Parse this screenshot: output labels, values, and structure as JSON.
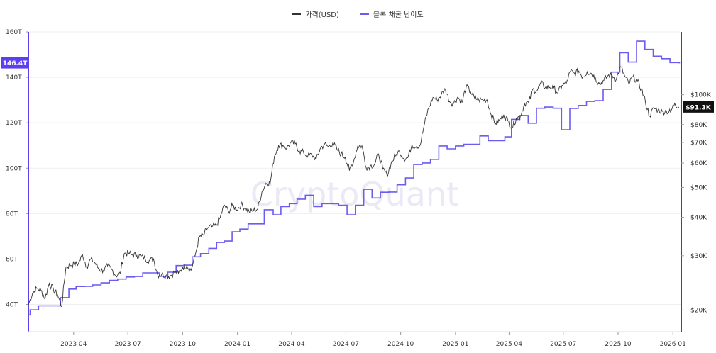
{
  "chart_data": {
    "type": "line",
    "watermark": "CryptoQuant",
    "colors": {
      "price": "#333333",
      "difficulty": "#6b5cf0",
      "difficulty_badge": "#5b3ff0",
      "price_badge": "#111111",
      "grid": "#efefef"
    },
    "legend": {
      "placement": "top-center",
      "price_label": "가격(USD)",
      "difficulty_label": "블록 채굴 난이도"
    },
    "x_axis": {
      "range": [
        "2023-01-15",
        "2026-01-15"
      ],
      "ticks": [
        {
          "date": "2023-04-01",
          "label": "2023 04"
        },
        {
          "date": "2023-07-01",
          "label": "2023 07"
        },
        {
          "date": "2023-10-01",
          "label": "2023 10"
        },
        {
          "date": "2024-01-01",
          "label": "2024 01"
        },
        {
          "date": "2024-04-01",
          "label": "2024 04"
        },
        {
          "date": "2024-07-01",
          "label": "2024 07"
        },
        {
          "date": "2024-10-01",
          "label": "2024 10"
        },
        {
          "date": "2025-01-01",
          "label": "2025 01"
        },
        {
          "date": "2025-04-01",
          "label": "2025 04"
        },
        {
          "date": "2025-07-01",
          "label": "2025 07"
        },
        {
          "date": "2025-10-01",
          "label": "2025 10"
        },
        {
          "date": "2026-01-01",
          "label": "2026 01"
        }
      ]
    },
    "left_axis": {
      "unit": "T",
      "range": [
        28,
        160
      ],
      "ticks": [
        {
          "value": 40,
          "label": "40T"
        },
        {
          "value": 60,
          "label": "60T"
        },
        {
          "value": 80,
          "label": "80T"
        },
        {
          "value": 100,
          "label": "100T"
        },
        {
          "value": 120,
          "label": "120T"
        },
        {
          "value": 140,
          "label": "140T"
        },
        {
          "value": 160,
          "label": "160T"
        }
      ],
      "current_badge": {
        "value": 146.4,
        "label": "146.4T"
      }
    },
    "right_axis": {
      "scale": "log",
      "range": [
        17000,
        160000
      ],
      "ticks": [
        {
          "value": 20000,
          "label": "$20K"
        },
        {
          "value": 30000,
          "label": "$30K"
        },
        {
          "value": 40000,
          "label": "$40K"
        },
        {
          "value": 50000,
          "label": "$50K"
        },
        {
          "value": 60000,
          "label": "$60K"
        },
        {
          "value": 70000,
          "label": "$70K"
        },
        {
          "value": 80000,
          "label": "$80K"
        },
        {
          "value": 100000,
          "label": "$100K"
        }
      ],
      "current_badge": {
        "value": 91300,
        "label": "$91.3K"
      }
    },
    "grid": true,
    "series": [
      {
        "name": "가격(USD)",
        "axis": "right",
        "points": [
          [
            "2023-01-15",
            20800
          ],
          [
            "2023-01-22",
            22700
          ],
          [
            "2023-01-29",
            23500
          ],
          [
            "2023-02-05",
            23200
          ],
          [
            "2023-02-12",
            21800
          ],
          [
            "2023-02-19",
            24400
          ],
          [
            "2023-02-26",
            23300
          ],
          [
            "2023-03-05",
            22400
          ],
          [
            "2023-03-12",
            20500
          ],
          [
            "2023-03-19",
            27500
          ],
          [
            "2023-03-26",
            28000
          ],
          [
            "2023-04-02",
            28200
          ],
          [
            "2023-04-09",
            28300
          ],
          [
            "2023-04-16",
            30200
          ],
          [
            "2023-04-23",
            27600
          ],
          [
            "2023-04-30",
            29300
          ],
          [
            "2023-05-07",
            28400
          ],
          [
            "2023-05-14",
            27100
          ],
          [
            "2023-05-21",
            26900
          ],
          [
            "2023-05-28",
            27800
          ],
          [
            "2023-06-04",
            27100
          ],
          [
            "2023-06-11",
            25900
          ],
          [
            "2023-06-18",
            26300
          ],
          [
            "2023-06-25",
            30500
          ],
          [
            "2023-07-02",
            30600
          ],
          [
            "2023-07-09",
            30200
          ],
          [
            "2023-07-16",
            30100
          ],
          [
            "2023-07-23",
            29900
          ],
          [
            "2023-07-30",
            29300
          ],
          [
            "2023-08-06",
            29000
          ],
          [
            "2023-08-13",
            29300
          ],
          [
            "2023-08-20",
            26000
          ],
          [
            "2023-08-27",
            26100
          ],
          [
            "2023-09-03",
            25900
          ],
          [
            "2023-09-10",
            25800
          ],
          [
            "2023-09-17",
            26500
          ],
          [
            "2023-09-24",
            26300
          ],
          [
            "2023-10-01",
            27500
          ],
          [
            "2023-10-08",
            27900
          ],
          [
            "2023-10-15",
            26900
          ],
          [
            "2023-10-22",
            30000
          ],
          [
            "2023-10-29",
            34500
          ],
          [
            "2023-11-05",
            35000
          ],
          [
            "2023-11-12",
            37000
          ],
          [
            "2023-11-19",
            37300
          ],
          [
            "2023-11-26",
            37500
          ],
          [
            "2023-12-03",
            39900
          ],
          [
            "2023-12-10",
            43800
          ],
          [
            "2023-12-17",
            41800
          ],
          [
            "2023-12-24",
            43700
          ],
          [
            "2023-12-31",
            42300
          ],
          [
            "2024-01-07",
            44000
          ],
          [
            "2024-01-14",
            42800
          ],
          [
            "2024-01-21",
            41600
          ],
          [
            "2024-01-28",
            42100
          ],
          [
            "2024-02-04",
            42600
          ],
          [
            "2024-02-11",
            48300
          ],
          [
            "2024-02-18",
            51600
          ],
          [
            "2024-02-25",
            51700
          ],
          [
            "2024-03-03",
            63100
          ],
          [
            "2024-03-10",
            68500
          ],
          [
            "2024-03-17",
            68400
          ],
          [
            "2024-03-24",
            67200
          ],
          [
            "2024-03-31",
            70000
          ],
          [
            "2024-04-07",
            69300
          ],
          [
            "2024-04-14",
            65700
          ],
          [
            "2024-04-21",
            64900
          ],
          [
            "2024-04-28",
            63100
          ],
          [
            "2024-05-05",
            63900
          ],
          [
            "2024-05-12",
            61500
          ],
          [
            "2024-05-19",
            66900
          ],
          [
            "2024-05-26",
            69000
          ],
          [
            "2024-06-02",
            67800
          ],
          [
            "2024-06-09",
            69600
          ],
          [
            "2024-06-16",
            66500
          ],
          [
            "2024-06-23",
            64300
          ],
          [
            "2024-06-30",
            62700
          ],
          [
            "2024-07-07",
            56700
          ],
          [
            "2024-07-14",
            60800
          ],
          [
            "2024-07-21",
            68200
          ],
          [
            "2024-07-28",
            68300
          ],
          [
            "2024-08-04",
            58100
          ],
          [
            "2024-08-11",
            58700
          ],
          [
            "2024-08-18",
            59400
          ],
          [
            "2024-08-25",
            64200
          ],
          [
            "2024-09-01",
            57300
          ],
          [
            "2024-09-08",
            54900
          ],
          [
            "2024-09-15",
            59900
          ],
          [
            "2024-09-22",
            63300
          ],
          [
            "2024-09-29",
            65600
          ],
          [
            "2024-10-06",
            62100
          ],
          [
            "2024-10-13",
            62500
          ],
          [
            "2024-10-20",
            68800
          ],
          [
            "2024-10-27",
            67800
          ],
          [
            "2024-11-03",
            68700
          ],
          [
            "2024-11-10",
            80400
          ],
          [
            "2024-11-17",
            90500
          ],
          [
            "2024-11-24",
            97900
          ],
          [
            "2024-12-01",
            96400
          ],
          [
            "2024-12-08",
            99900
          ],
          [
            "2024-12-15",
            104400
          ],
          [
            "2024-12-22",
            95100
          ],
          [
            "2024-12-29",
            93700
          ],
          [
            "2025-01-05",
            98300
          ],
          [
            "2025-01-12",
            94500
          ],
          [
            "2025-01-19",
            106200
          ],
          [
            "2025-01-26",
            102600
          ],
          [
            "2025-02-02",
            97700
          ],
          [
            "2025-02-09",
            96500
          ],
          [
            "2025-02-16",
            96100
          ],
          [
            "2025-02-23",
            96300
          ],
          [
            "2025-03-02",
            86100
          ],
          [
            "2025-03-09",
            80700
          ],
          [
            "2025-03-16",
            82600
          ],
          [
            "2025-03-23",
            86100
          ],
          [
            "2025-03-30",
            82300
          ],
          [
            "2025-04-06",
            78300
          ],
          [
            "2025-04-13",
            83700
          ],
          [
            "2025-04-20",
            85200
          ],
          [
            "2025-04-27",
            93700
          ],
          [
            "2025-05-04",
            94300
          ],
          [
            "2025-05-11",
            104200
          ],
          [
            "2025-05-18",
            103200
          ],
          [
            "2025-05-25",
            109000
          ],
          [
            "2025-06-01",
            105700
          ],
          [
            "2025-06-08",
            105700
          ],
          [
            "2025-06-15",
            105500
          ],
          [
            "2025-06-22",
            101500
          ],
          [
            "2025-06-29",
            107300
          ],
          [
            "2025-07-06",
            108900
          ],
          [
            "2025-07-13",
            119100
          ],
          [
            "2025-07-20",
            117300
          ],
          [
            "2025-07-27",
            119400
          ],
          [
            "2025-08-03",
            114200
          ],
          [
            "2025-08-10",
            118700
          ],
          [
            "2025-08-17",
            117400
          ],
          [
            "2025-08-24",
            113500
          ],
          [
            "2025-08-31",
            108200
          ],
          [
            "2025-09-07",
            111100
          ],
          [
            "2025-09-14",
            115400
          ],
          [
            "2025-09-21",
            115700
          ],
          [
            "2025-09-28",
            112100
          ],
          [
            "2025-10-05",
            123500
          ],
          [
            "2025-10-12",
            115000
          ],
          [
            "2025-10-19",
            108600
          ],
          [
            "2025-10-26",
            114500
          ],
          [
            "2025-11-02",
            110500
          ],
          [
            "2025-11-09",
            104700
          ],
          [
            "2025-11-16",
            94400
          ],
          [
            "2025-11-23",
            85300
          ],
          [
            "2025-11-30",
            90400
          ],
          [
            "2025-12-07",
            89300
          ],
          [
            "2025-12-14",
            88200
          ],
          [
            "2025-12-21",
            88500
          ],
          [
            "2025-12-28",
            87800
          ],
          [
            "2026-01-04",
            93800
          ],
          [
            "2026-01-11",
            91300
          ]
        ]
      },
      {
        "name": "블록 채굴 난이도",
        "axis": "left",
        "points": [
          [
            "2023-01-15",
            35.4
          ],
          [
            "2023-01-18",
            37.6
          ],
          [
            "2023-02-01",
            39.4
          ],
          [
            "2023-02-17",
            39.4
          ],
          [
            "2023-03-03",
            39.4
          ],
          [
            "2023-03-10",
            43.0
          ],
          [
            "2023-03-24",
            46.8
          ],
          [
            "2023-04-05",
            47.9
          ],
          [
            "2023-04-20",
            48.0
          ],
          [
            "2023-05-03",
            48.6
          ],
          [
            "2023-05-17",
            49.5
          ],
          [
            "2023-05-31",
            50.6
          ],
          [
            "2023-06-14",
            51.2
          ],
          [
            "2023-06-28",
            52.1
          ],
          [
            "2023-07-12",
            52.3
          ],
          [
            "2023-07-26",
            53.9
          ],
          [
            "2023-08-09",
            53.9
          ],
          [
            "2023-08-23",
            52.4
          ],
          [
            "2023-09-06",
            54.2
          ],
          [
            "2023-09-20",
            57.1
          ],
          [
            "2023-10-03",
            57.3
          ],
          [
            "2023-10-17",
            61.0
          ],
          [
            "2023-10-31",
            62.4
          ],
          [
            "2023-11-14",
            64.7
          ],
          [
            "2023-11-27",
            67.3
          ],
          [
            "2023-12-10",
            67.9
          ],
          [
            "2023-12-23",
            72.0
          ],
          [
            "2024-01-05",
            73.2
          ],
          [
            "2024-01-19",
            75.5
          ],
          [
            "2024-02-02",
            75.5
          ],
          [
            "2024-02-15",
            81.7
          ],
          [
            "2024-03-01",
            79.5
          ],
          [
            "2024-03-14",
            83.1
          ],
          [
            "2024-03-28",
            84.4
          ],
          [
            "2024-04-10",
            86.4
          ],
          [
            "2024-04-24",
            88.1
          ],
          [
            "2024-05-08",
            83.1
          ],
          [
            "2024-05-22",
            84.4
          ],
          [
            "2024-06-05",
            84.4
          ],
          [
            "2024-06-19",
            83.7
          ],
          [
            "2024-07-03",
            79.5
          ],
          [
            "2024-07-17",
            83.7
          ],
          [
            "2024-07-31",
            90.7
          ],
          [
            "2024-08-14",
            86.9
          ],
          [
            "2024-08-28",
            89.4
          ],
          [
            "2024-09-11",
            89.5
          ],
          [
            "2024-09-25",
            92.7
          ],
          [
            "2024-10-09",
            95.7
          ],
          [
            "2024-10-23",
            101.6
          ],
          [
            "2024-11-06",
            102.3
          ],
          [
            "2024-11-20",
            103.9
          ],
          [
            "2024-12-04",
            109.8
          ],
          [
            "2024-12-18",
            108.5
          ],
          [
            "2025-01-01",
            109.8
          ],
          [
            "2025-01-15",
            110.5
          ],
          [
            "2025-01-29",
            110.5
          ],
          [
            "2025-02-11",
            114.2
          ],
          [
            "2025-02-25",
            112.1
          ],
          [
            "2025-03-11",
            112.1
          ],
          [
            "2025-03-25",
            113.8
          ],
          [
            "2025-04-05",
            121.5
          ],
          [
            "2025-04-19",
            123.2
          ],
          [
            "2025-05-03",
            119.8
          ],
          [
            "2025-05-17",
            126.4
          ],
          [
            "2025-05-31",
            126.9
          ],
          [
            "2025-06-14",
            126.4
          ],
          [
            "2025-06-28",
            116.9
          ],
          [
            "2025-07-12",
            126.3
          ],
          [
            "2025-07-26",
            127.6
          ],
          [
            "2025-08-09",
            129.4
          ],
          [
            "2025-08-23",
            129.7
          ],
          [
            "2025-09-06",
            134.7
          ],
          [
            "2025-09-20",
            142.3
          ],
          [
            "2025-10-04",
            150.8
          ],
          [
            "2025-10-18",
            146.7
          ],
          [
            "2025-11-01",
            155.9
          ],
          [
            "2025-11-15",
            152.3
          ],
          [
            "2025-11-29",
            149.3
          ],
          [
            "2025-12-13",
            148.2
          ],
          [
            "2025-12-27",
            146.5
          ],
          [
            "2026-01-10",
            146.4
          ]
        ]
      }
    ]
  }
}
